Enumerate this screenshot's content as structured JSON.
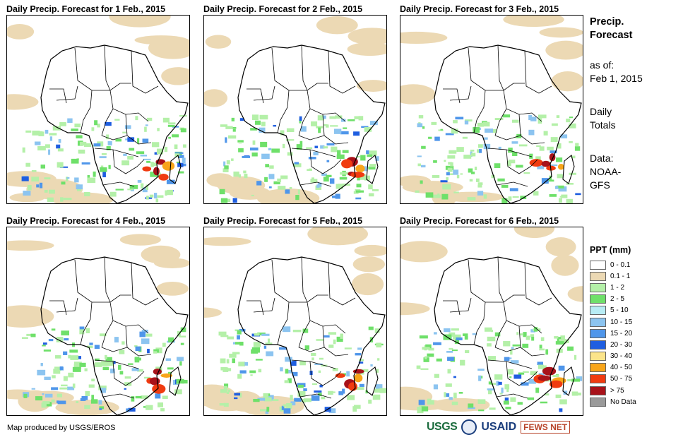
{
  "panels": [
    {
      "title": "Daily Precip. Forecast for 1 Feb., 2015"
    },
    {
      "title": "Daily Precip. Forecast for 2 Feb., 2015"
    },
    {
      "title": "Daily Precip. Forecast for 3 Feb., 2015"
    },
    {
      "title": "Daily Precip. Forecast for 4 Feb., 2015"
    },
    {
      "title": "Daily Precip. Forecast for 5 Feb., 2015"
    },
    {
      "title": "Daily Precip. Forecast for 6 Feb., 2015"
    }
  ],
  "sidebar": {
    "heading_line1": "Precip.",
    "heading_line2": "Forecast",
    "asof_label": "as of:",
    "asof_date": "Feb 1, 2015",
    "totals_line1": "Daily",
    "totals_line2": "Totals",
    "data_line1": "Data:",
    "data_line2": "NOAA-",
    "data_line3": "GFS"
  },
  "legend": {
    "title": "PPT (mm)",
    "items": [
      {
        "label": "0 - 0.1",
        "color": "#ffffff"
      },
      {
        "label": "0.1 - 1",
        "color": "#ecd9b4"
      },
      {
        "label": "1 - 2",
        "color": "#b4f0a8"
      },
      {
        "label": "2 - 5",
        "color": "#6fe06a"
      },
      {
        "label": "5 - 10",
        "color": "#b8ecf4"
      },
      {
        "label": "10 - 15",
        "color": "#8cc4f0"
      },
      {
        "label": "15 - 20",
        "color": "#4f96ea"
      },
      {
        "label": "20 - 30",
        "color": "#1f5ee0"
      },
      {
        "label": "30 - 40",
        "color": "#fbe48a"
      },
      {
        "label": "40 - 50",
        "color": "#f8a51a"
      },
      {
        "label": "50 - 75",
        "color": "#f03b10"
      },
      {
        "label": "> 75",
        "color": "#a8121a"
      },
      {
        "label": "No Data",
        "color": "#9a9a9a"
      }
    ]
  },
  "footer": {
    "credit": "Map produced by USGS/EROS",
    "logos": {
      "usgs": "USGS",
      "usaid": "USAID",
      "fews": "FEWS NET"
    }
  }
}
